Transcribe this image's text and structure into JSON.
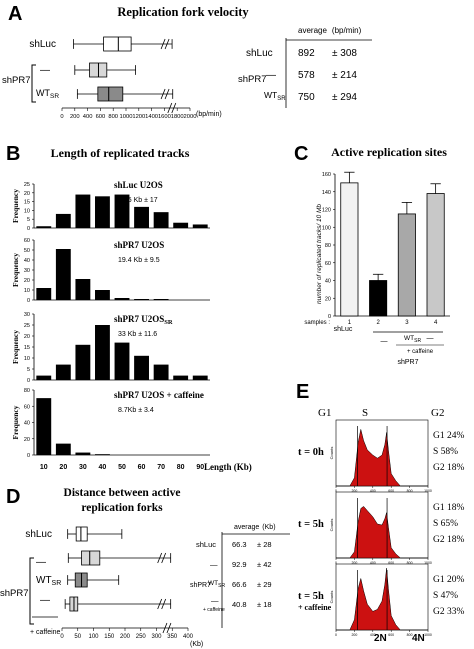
{
  "panels": {
    "A": {
      "letter": "A",
      "title": "Replication fork velocity",
      "row_labels": [
        "shLuc",
        "—",
        "WT"
      ],
      "row_sub": "SR",
      "group_label": "shPR7",
      "axis_unit": "(bp/min)",
      "ticks": [
        0,
        200,
        400,
        600,
        800,
        1000,
        1200,
        1400,
        1600,
        1800,
        2000
      ],
      "table": {
        "header": "average",
        "header_unit": "(bp/min)",
        "rows": [
          {
            "label": "shLuc",
            "value": "892",
            "sd": "± 308"
          },
          {
            "label": "—",
            "value": "578",
            "sd": "± 214"
          },
          {
            "label": "WT",
            "sub": "SR",
            "value": "750",
            "sd": "± 294"
          }
        ],
        "group_label": "shPR7"
      }
    },
    "B": {
      "letter": "B",
      "title": "Length of  replicated tracks",
      "ylabel": "Frequency",
      "xlabel": "Length (Kb)",
      "x_ticks": [
        "10",
        "20",
        "30",
        "40",
        "50",
        "60",
        "70",
        "80",
        "90"
      ],
      "histograms": [
        {
          "name": "shLuc U2OS",
          "stat": "38.5 Kb ± 17",
          "y_ticks": [
            "0",
            "5",
            "10",
            "15",
            "20",
            "25"
          ]
        },
        {
          "name": "shPR7 U2OS",
          "stat": "19.4 Kb ± 9.5",
          "y_ticks": [
            "0",
            "10",
            "20",
            "30",
            "40",
            "50",
            "60"
          ]
        },
        {
          "name": "shPR7 U2OS",
          "name_sub": "SR",
          "stat": "33 Kb ± 11.6",
          "y_ticks": [
            "0",
            "5",
            "10",
            "15",
            "20",
            "25",
            "30"
          ]
        },
        {
          "name": "shPR7 U2OS + caffeine",
          "stat": "8.7Kb ± 3.4",
          "y_ticks": [
            "0",
            "20",
            "40",
            "60",
            "80"
          ]
        }
      ]
    },
    "C": {
      "letter": "C",
      "title": "Active replication sites",
      "ylabel": "number of replicated tracks/ 10 Mb",
      "y_ticks": [
        "0",
        "20",
        "40",
        "60",
        "80",
        "100",
        "120",
        "140",
        "160"
      ],
      "samples_label": "samples :",
      "sample_numbers": [
        "1",
        "2",
        "3",
        "4"
      ],
      "group_shluc": "shLuc",
      "sub_dash": "—",
      "sub_wt": "WT",
      "sub_wt_sub": "SR",
      "sub_caffeine": "+ caffeine",
      "group_shpr7": "shPR7"
    },
    "D": {
      "letter": "D",
      "title_line1": "Distance between active",
      "title_line2": "replication forks",
      "row_labels": [
        "shLuc",
        "—",
        "WT",
        "—"
      ],
      "row_wt_sub": "SR",
      "caffeine_label": "+ caffeine",
      "group_label": "shPR7",
      "x_ticks": [
        "0",
        "50",
        "100",
        "150",
        "200",
        "250",
        "300",
        "350",
        "400"
      ],
      "x_unit": "(Kb)",
      "table": {
        "header": "average",
        "header_unit": "(Kb)",
        "rows": [
          {
            "label": "shLuc",
            "value": "66.3",
            "sd": "± 28"
          },
          {
            "label": "—",
            "value": "92.9",
            "sd": "± 42"
          },
          {
            "label": "WT",
            "sub": "SR",
            "value": "66.6",
            "sd": "± 29"
          },
          {
            "label": "—",
            "value": "40.8",
            "sd": "± 18"
          }
        ],
        "caffeine_label": "+ caffeine",
        "group_label": "shPR7"
      }
    },
    "E": {
      "letter": "E",
      "phase_labels": [
        "G1",
        "S",
        "G2"
      ],
      "ylabel": "Counts",
      "x_ticks": [
        "0",
        "200",
        "400",
        "600",
        "800",
        "1000"
      ],
      "x_marks": [
        "2N",
        "4N"
      ],
      "conditions": [
        {
          "time": "t = 0h",
          "extra": "",
          "g1": "G1 24%",
          "s": "S    58%",
          "g2": "G2 18%"
        },
        {
          "time": "t = 5h",
          "extra": "",
          "g1": "G1 18%",
          "s": "S    65%",
          "g2": "G2 18%"
        },
        {
          "time": "t = 5h",
          "extra": "+ caffeine",
          "g1": "G1 20%",
          "s": "S    47%",
          "g2": "G2 33%"
        }
      ]
    }
  },
  "colors": {
    "box_white": "#ffffff",
    "box_light": "#d8d8d8",
    "box_dark": "#8a8a8a",
    "flow_red": "#cc1111",
    "bar_black": "#000000"
  },
  "chart_data": [
    {
      "type": "box",
      "panel": "A",
      "title": "Replication fork velocity",
      "x_unit": "bp/min",
      "xlim": [
        0,
        2000
      ],
      "series": [
        {
          "name": "shLuc",
          "whisker_low": 180,
          "q1": 650,
          "median": 880,
          "q3": 1080,
          "whisker_high": 1720,
          "broken_axis": true
        },
        {
          "name": "shPR7 —",
          "whisker_low": 200,
          "q1": 430,
          "median": 570,
          "q3": 700,
          "whisker_high": 1150
        },
        {
          "name": "shPR7 WT SR",
          "whisker_low": 240,
          "q1": 560,
          "median": 730,
          "q3": 950,
          "whisker_high": 1730,
          "broken_axis": true
        }
      ]
    },
    {
      "type": "bar",
      "panel": "B",
      "title": "Length of  replicated tracks",
      "xlabel": "Length (Kb)",
      "ylabel": "Frequency",
      "categories": [
        10,
        20,
        30,
        40,
        50,
        60,
        70,
        80,
        90
      ],
      "series": [
        {
          "name": "shLuc U2OS",
          "ylim": [
            0,
            25
          ],
          "values": [
            1,
            8,
            19,
            18,
            19,
            12,
            9,
            3,
            2
          ]
        },
        {
          "name": "shPR7 U2OS",
          "ylim": [
            0,
            60
          ],
          "values": [
            12,
            51,
            21,
            10,
            2,
            1,
            1,
            0,
            0
          ]
        },
        {
          "name": "shPR7 U2OS SR",
          "ylim": [
            0,
            30
          ],
          "values": [
            2,
            7,
            16,
            25,
            17,
            11,
            7,
            2,
            2
          ]
        },
        {
          "name": "shPR7 U2OS + caffeine",
          "ylim": [
            0,
            80
          ],
          "values": [
            70,
            14,
            3,
            1,
            0,
            0,
            0,
            0,
            0
          ]
        }
      ]
    },
    {
      "type": "bar",
      "panel": "C",
      "title": "Active replication sites",
      "ylabel": "number of replicated tracks/ 10 Mb",
      "ylim": [
        0,
        160
      ],
      "categories": [
        "1",
        "2",
        "3",
        "4"
      ],
      "values": [
        150,
        40,
        115,
        138
      ],
      "errors": [
        12,
        7,
        13,
        11
      ],
      "colors": [
        "#f2f2f2",
        "#000000",
        "#a8a8a8",
        "#c8c8c8"
      ]
    },
    {
      "type": "box",
      "panel": "D",
      "title": "Distance between active replication forks",
      "x_unit": "Kb",
      "xlim": [
        0,
        400
      ],
      "series": [
        {
          "name": "shLuc",
          "whisker_low": 18,
          "q1": 45,
          "median": 60,
          "q3": 80,
          "whisker_high": 190
        },
        {
          "name": "shPR7 —",
          "whisker_low": 20,
          "q1": 62,
          "median": 88,
          "q3": 120,
          "whisker_high": 345,
          "broken_axis": true
        },
        {
          "name": "shPR7 WT SR",
          "whisker_low": 18,
          "q1": 42,
          "median": 62,
          "q3": 80,
          "whisker_high": 180
        },
        {
          "name": "shPR7 — + caffeine",
          "whisker_low": 10,
          "q1": 25,
          "median": 38,
          "q3": 50,
          "whisker_high": 345,
          "broken_axis": true
        }
      ]
    },
    {
      "type": "area",
      "panel": "E",
      "xlim": [
        0,
        1000
      ],
      "series": [
        {
          "name": "t = 0h",
          "x": [
            0,
            150,
            200,
            240,
            270,
            300,
            340,
            400,
            450,
            500,
            530,
            550,
            570,
            600,
            650,
            700,
            1000
          ],
          "values": [
            0,
            0,
            8,
            42,
            55,
            44,
            35,
            30,
            27,
            30,
            40,
            52,
            35,
            12,
            5,
            0,
            0
          ]
        },
        {
          "name": "t = 5h",
          "x": [
            0,
            150,
            200,
            240,
            270,
            300,
            340,
            400,
            450,
            500,
            530,
            550,
            570,
            600,
            650,
            700,
            1000
          ],
          "values": [
            0,
            0,
            6,
            35,
            48,
            50,
            46,
            40,
            33,
            32,
            38,
            44,
            30,
            10,
            4,
            0,
            0
          ]
        },
        {
          "name": "t = 5h + caffeine",
          "x": [
            0,
            150,
            200,
            240,
            270,
            300,
            340,
            400,
            450,
            500,
            530,
            550,
            570,
            600,
            650,
            700,
            1000
          ],
          "values": [
            0,
            0,
            10,
            40,
            50,
            38,
            25,
            18,
            20,
            28,
            44,
            60,
            40,
            14,
            5,
            0,
            0
          ]
        }
      ]
    }
  ]
}
